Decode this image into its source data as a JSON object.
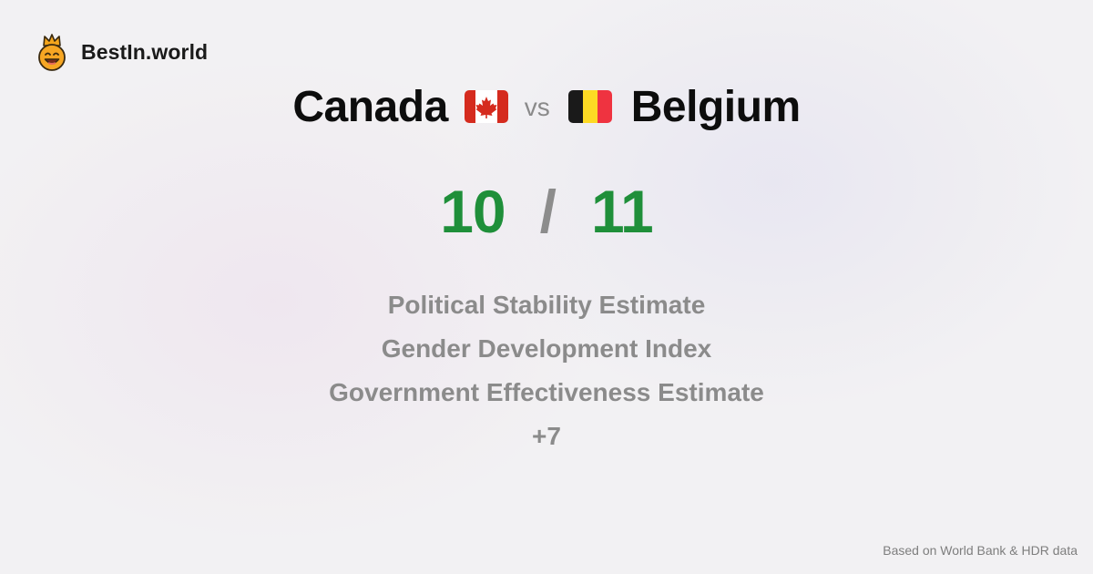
{
  "brand": {
    "name": "BestIn.world",
    "logo_icon": "crowned-smiley-icon"
  },
  "comparison": {
    "left_country": "Canada",
    "left_flag_icon": "canada-flag-icon",
    "separator": "vs",
    "right_country": "Belgium",
    "right_flag_icon": "belgium-flag-icon"
  },
  "score": {
    "left": "10",
    "separator": "/",
    "right": "11",
    "color": "#1f8f3a"
  },
  "metrics": [
    "Political Stability Estimate",
    "Gender Development Index",
    "Government Effectiveness Estimate",
    "+7"
  ],
  "footer": {
    "source": "Based on World Bank & HDR data"
  }
}
